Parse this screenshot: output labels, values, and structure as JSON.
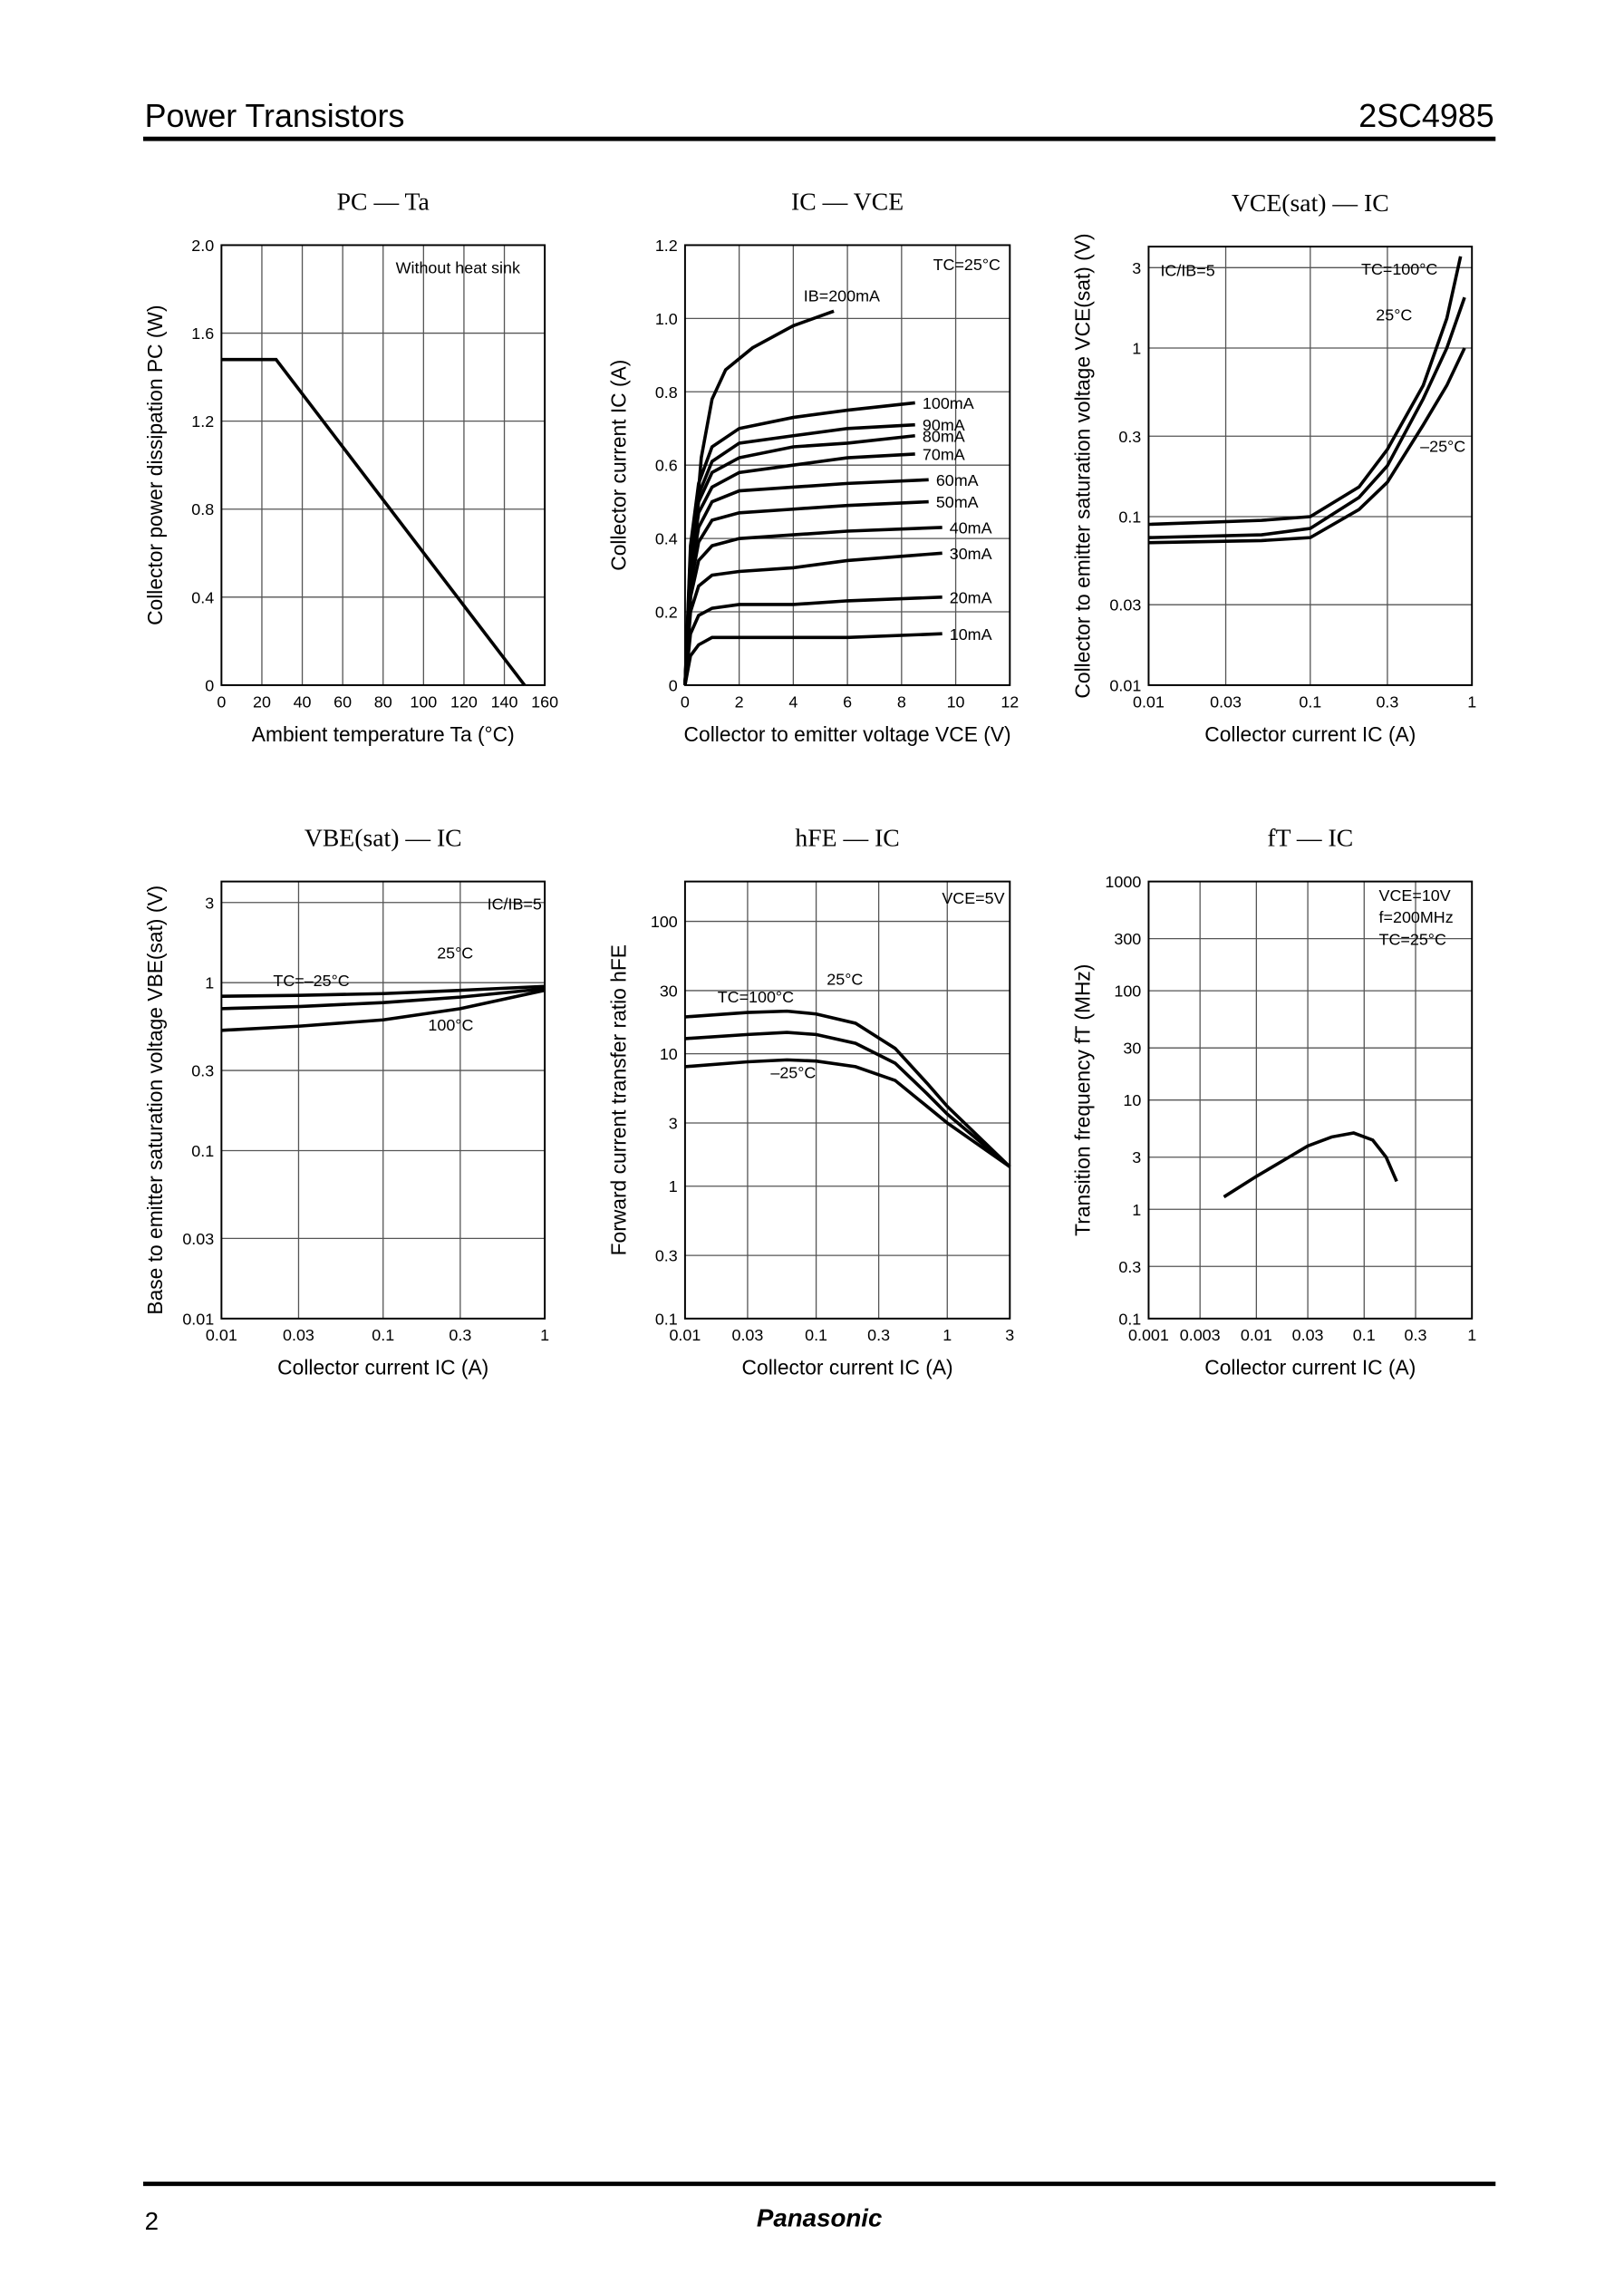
{
  "header": {
    "left": "Power Transistors",
    "right": "2SC4985"
  },
  "footer": {
    "page": "2",
    "brand": "Panasonic"
  },
  "chart_data": [
    {
      "type": "line",
      "title": "PC — Ta",
      "xlabel": "Ambient temperature Ta (°C)",
      "ylabel": "Collector power dissipation PC (W)",
      "xlog": false,
      "ylog": false,
      "grid": true,
      "xlim": [
        0,
        160
      ],
      "xticks": [
        0,
        20,
        40,
        60,
        80,
        100,
        120,
        140,
        160
      ],
      "ylim": [
        0,
        2
      ],
      "yticks": [
        0,
        0.4,
        0.8,
        1.2,
        1.6,
        {
          "value": 2,
          "label": "2.0"
        }
      ],
      "series": [
        {
          "color": "#000000",
          "x": [
            0,
            27,
            150
          ],
          "values": [
            1.48,
            1.48,
            0
          ]
        }
      ],
      "annotations": [
        "Without heat sink"
      ]
    },
    {
      "type": "line",
      "title": "IC — VCE",
      "xlabel": "Collector to emitter voltage VCE (V)",
      "ylabel": "Collector current IC (A)",
      "xlog": false,
      "ylog": false,
      "grid": true,
      "xlim": [
        0,
        12
      ],
      "xticks": [
        0,
        2,
        4,
        6,
        8,
        10,
        12
      ],
      "ylim": [
        0,
        1.2
      ],
      "yticks": [
        0,
        0.2,
        0.4,
        0.6,
        0.8,
        {
          "value": 1,
          "label": "1.0"
        },
        1.2
      ],
      "series": [
        {
          "name": "IB=200mA",
          "color": "#000000",
          "x": [
            0,
            0.3,
            0.6,
            1,
            1.5,
            2.5,
            4,
            5.5
          ],
          "values": [
            0,
            0.35,
            0.62,
            0.78,
            0.86,
            0.92,
            0.98,
            1.02
          ]
        },
        {
          "name": "100mA",
          "color": "#000000",
          "x": [
            0,
            0.2,
            0.5,
            1,
            2,
            4,
            6,
            8.5
          ],
          "values": [
            0,
            0.38,
            0.55,
            0.65,
            0.7,
            0.73,
            0.75,
            0.77
          ]
        },
        {
          "name": "90mA",
          "color": "#000000",
          "x": [
            0,
            0.2,
            0.5,
            1,
            2,
            4,
            6,
            8.5
          ],
          "values": [
            0,
            0.36,
            0.52,
            0.61,
            0.66,
            0.68,
            0.7,
            0.71
          ]
        },
        {
          "name": "80mA",
          "color": "#000000",
          "x": [
            0,
            0.2,
            0.5,
            1,
            2,
            4,
            6,
            8.5
          ],
          "values": [
            0,
            0.34,
            0.5,
            0.58,
            0.62,
            0.65,
            0.66,
            0.68
          ]
        },
        {
          "name": "70mA",
          "color": "#000000",
          "x": [
            0,
            0.2,
            0.5,
            1,
            2,
            4,
            6,
            8.5
          ],
          "values": [
            0,
            0.32,
            0.47,
            0.54,
            0.58,
            0.6,
            0.62,
            0.63
          ]
        },
        {
          "name": "60mA",
          "color": "#000000",
          "x": [
            0,
            0.2,
            0.5,
            1,
            2,
            4,
            6,
            9
          ],
          "values": [
            0,
            0.3,
            0.43,
            0.5,
            0.53,
            0.54,
            0.55,
            0.56
          ]
        },
        {
          "name": "50mA",
          "color": "#000000",
          "x": [
            0,
            0.2,
            0.5,
            1,
            2,
            4,
            6,
            9
          ],
          "values": [
            0,
            0.27,
            0.39,
            0.45,
            0.47,
            0.48,
            0.49,
            0.5
          ]
        },
        {
          "name": "40mA",
          "color": "#000000",
          "x": [
            0,
            0.2,
            0.5,
            1,
            2,
            4,
            6,
            9.5
          ],
          "values": [
            0,
            0.24,
            0.34,
            0.38,
            0.4,
            0.41,
            0.42,
            0.43
          ]
        },
        {
          "name": "30mA",
          "color": "#000000",
          "x": [
            0,
            0.2,
            0.5,
            1,
            2,
            4,
            6,
            9.5
          ],
          "values": [
            0,
            0.2,
            0.27,
            0.3,
            0.31,
            0.32,
            0.34,
            0.36
          ]
        },
        {
          "name": "20mA",
          "color": "#000000",
          "x": [
            0,
            0.2,
            0.5,
            1,
            2,
            4,
            6,
            9.5
          ],
          "values": [
            0,
            0.14,
            0.19,
            0.21,
            0.22,
            0.22,
            0.23,
            0.24
          ]
        },
        {
          "name": "10mA",
          "color": "#000000",
          "x": [
            0,
            0.2,
            0.5,
            1,
            2,
            4,
            6,
            9.5
          ],
          "values": [
            0,
            0.08,
            0.11,
            0.13,
            0.13,
            0.13,
            0.13,
            0.14
          ]
        }
      ],
      "annotations": [
        "TC=25°C"
      ]
    },
    {
      "type": "line",
      "title": "VCE(sat) — IC",
      "xlabel": "Collector current IC (A)",
      "ylabel": "Collector to emitter saturation voltage VCE(sat) (V)",
      "xlog": true,
      "ylog": true,
      "grid": true,
      "xlim": [
        0.01,
        1
      ],
      "xticks": [
        0.01,
        0.03,
        0.1,
        0.3,
        1
      ],
      "ylim": [
        0.01,
        4
      ],
      "yticks": [
        0.01,
        0.03,
        0.1,
        0.3,
        1,
        3
      ],
      "series": [
        {
          "name": "TC=100°C",
          "color": "#000000",
          "x": [
            0.01,
            0.05,
            0.1,
            0.2,
            0.3,
            0.5,
            0.7,
            0.85
          ],
          "values": [
            0.09,
            0.095,
            0.1,
            0.15,
            0.25,
            0.6,
            1.5,
            3.5
          ]
        },
        {
          "name": "25°C",
          "color": "#000000",
          "x": [
            0.01,
            0.05,
            0.1,
            0.2,
            0.3,
            0.5,
            0.7,
            0.9
          ],
          "values": [
            0.075,
            0.078,
            0.085,
            0.13,
            0.2,
            0.5,
            1,
            2
          ]
        },
        {
          "name": "–25°C",
          "color": "#000000",
          "x": [
            0.01,
            0.05,
            0.1,
            0.2,
            0.3,
            0.5,
            0.7,
            0.9
          ],
          "values": [
            0.07,
            0.072,
            0.075,
            0.11,
            0.16,
            0.35,
            0.6,
            1
          ]
        }
      ],
      "annotations": [
        "IC/IB=5"
      ]
    },
    {
      "type": "line",
      "title": "VBE(sat) — IC",
      "xlabel": "Collector current IC (A)",
      "ylabel": "Base to emitter saturation voltage VBE(sat) (V)",
      "xlog": true,
      "ylog": true,
      "grid": true,
      "xlim": [
        0.01,
        1
      ],
      "xticks": [
        0.01,
        0.03,
        0.1,
        0.3,
        1
      ],
      "ylim": [
        0.01,
        4
      ],
      "yticks": [
        0.01,
        0.03,
        0.1,
        0.3,
        1,
        3
      ],
      "series": [
        {
          "name": "25°C",
          "color": "#000000",
          "x": [
            0.01,
            0.03,
            0.1,
            0.3,
            1
          ],
          "values": [
            0.7,
            0.72,
            0.76,
            0.82,
            0.92
          ]
        },
        {
          "name": "TC=–25°C",
          "color": "#000000",
          "x": [
            0.01,
            0.03,
            0.1,
            0.3,
            1
          ],
          "values": [
            0.83,
            0.84,
            0.86,
            0.9,
            0.95
          ]
        },
        {
          "name": "100°C",
          "color": "#000000",
          "x": [
            0.01,
            0.03,
            0.1,
            0.3,
            1
          ],
          "values": [
            0.52,
            0.55,
            0.6,
            0.7,
            0.9
          ]
        }
      ],
      "annotations": [
        "IC/IB=5"
      ]
    },
    {
      "type": "line",
      "title": "hFE — IC",
      "xlabel": "Collector current IC (A)",
      "ylabel": "Forward current transfer ratio hFE",
      "xlog": true,
      "ylog": true,
      "grid": true,
      "xlim": [
        0.01,
        3
      ],
      "xticks": [
        0.01,
        0.03,
        0.1,
        0.3,
        1,
        3
      ],
      "ylim": [
        0.1,
        200
      ],
      "yticks": [
        0.1,
        0.3,
        1,
        3,
        10,
        30,
        100
      ],
      "series": [
        {
          "name": "TC=100°C",
          "color": "#000000",
          "x": [
            0.01,
            0.03,
            0.06,
            0.1,
            0.2,
            0.4,
            0.7,
            1,
            3
          ],
          "values": [
            19,
            20.5,
            21,
            20,
            17,
            11,
            6,
            4,
            1.4
          ]
        },
        {
          "name": "25°C",
          "color": "#000000",
          "x": [
            0.01,
            0.03,
            0.06,
            0.1,
            0.2,
            0.4,
            0.7,
            1,
            3
          ],
          "values": [
            13,
            14,
            14.5,
            14,
            12,
            8.5,
            5,
            3.5,
            1.4
          ]
        },
        {
          "name": "–25°C",
          "color": "#000000",
          "x": [
            0.01,
            0.03,
            0.06,
            0.1,
            0.2,
            0.4,
            0.7,
            1,
            3
          ],
          "values": [
            8,
            8.7,
            9,
            8.8,
            8,
            6.3,
            4,
            3,
            1.4
          ]
        }
      ],
      "annotations": [
        "VCE=5V"
      ]
    },
    {
      "type": "line",
      "title": "fT — IC",
      "xlabel": "Collector current IC (A)",
      "ylabel": "Transition frequency fT (MHz)",
      "xlog": true,
      "ylog": true,
      "grid": true,
      "xlim": [
        0.001,
        1
      ],
      "xticks": [
        0.001,
        0.003,
        0.01,
        0.03,
        0.1,
        0.3,
        1
      ],
      "ylim": [
        0.1,
        1000
      ],
      "yticks": [
        0.1,
        0.3,
        1,
        3,
        10,
        30,
        100,
        300,
        1000
      ],
      "series": [
        {
          "color": "#000000",
          "x": [
            0.005,
            0.01,
            0.02,
            0.03,
            0.05,
            0.08,
            0.12,
            0.16,
            0.2
          ],
          "values": [
            1.3,
            2,
            3,
            3.8,
            4.6,
            5,
            4.3,
            3,
            1.8
          ]
        }
      ],
      "annotations": [
        "VCE=10V",
        "f=200MHz",
        "TC=25°C"
      ]
    }
  ]
}
